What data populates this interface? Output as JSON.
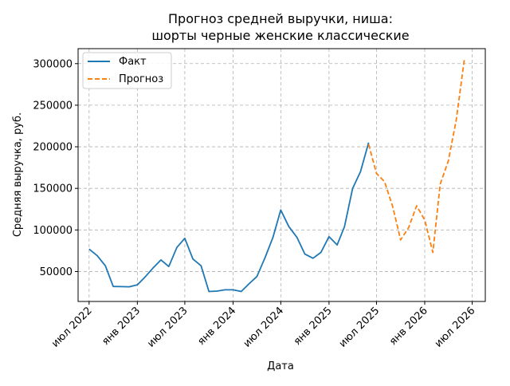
{
  "chart_data": {
    "type": "line",
    "title_lines": [
      "Прогноз средней выручки, ниша:",
      "шорты черные женские классические"
    ],
    "xlabel": "Дата",
    "ylabel": "Средняя выручка, руб.",
    "xlim": [
      "2022-05-20",
      "2026-08-20"
    ],
    "ylim": [
      14000,
      318000
    ],
    "y_ticks": [
      50000,
      100000,
      150000,
      200000,
      250000,
      300000
    ],
    "x_ticks": [
      {
        "date": "2022-07-01",
        "label": "июл 2022"
      },
      {
        "date": "2023-01-01",
        "label": "янв 2023"
      },
      {
        "date": "2023-07-01",
        "label": "июл 2023"
      },
      {
        "date": "2024-01-01",
        "label": "янв 2024"
      },
      {
        "date": "2024-07-01",
        "label": "июл 2024"
      },
      {
        "date": "2025-01-01",
        "label": "янв 2025"
      },
      {
        "date": "2025-07-01",
        "label": "июл 2025"
      },
      {
        "date": "2026-01-01",
        "label": "янв 2026"
      },
      {
        "date": "2026-07-01",
        "label": "июл 2026"
      }
    ],
    "grid": true,
    "legend_position": "top-left",
    "series": [
      {
        "name": "Факт",
        "color": "#1f77b4",
        "style": "solid",
        "points": [
          {
            "x": "2022-07-01",
            "y": 77000
          },
          {
            "x": "2022-08-01",
            "y": 69000
          },
          {
            "x": "2022-09-01",
            "y": 57000
          },
          {
            "x": "2022-10-01",
            "y": 32000
          },
          {
            "x": "2022-11-01",
            "y": 31800
          },
          {
            "x": "2022-12-01",
            "y": 31600
          },
          {
            "x": "2023-01-01",
            "y": 34000
          },
          {
            "x": "2023-02-01",
            "y": 44000
          },
          {
            "x": "2023-03-01",
            "y": 54000
          },
          {
            "x": "2023-04-01",
            "y": 64000
          },
          {
            "x": "2023-05-01",
            "y": 56000
          },
          {
            "x": "2023-06-01",
            "y": 79000
          },
          {
            "x": "2023-07-01",
            "y": 90000
          },
          {
            "x": "2023-08-01",
            "y": 65000
          },
          {
            "x": "2023-09-01",
            "y": 57000
          },
          {
            "x": "2023-10-01",
            "y": 26000
          },
          {
            "x": "2023-11-01",
            "y": 26500
          },
          {
            "x": "2023-12-01",
            "y": 28000
          },
          {
            "x": "2024-01-01",
            "y": 28000
          },
          {
            "x": "2024-02-01",
            "y": 26000
          },
          {
            "x": "2024-03-01",
            "y": 35000
          },
          {
            "x": "2024-04-01",
            "y": 44000
          },
          {
            "x": "2024-05-01",
            "y": 66000
          },
          {
            "x": "2024-06-01",
            "y": 91000
          },
          {
            "x": "2024-07-01",
            "y": 124000
          },
          {
            "x": "2024-08-01",
            "y": 104000
          },
          {
            "x": "2024-09-01",
            "y": 91000
          },
          {
            "x": "2024-10-01",
            "y": 71000
          },
          {
            "x": "2024-11-01",
            "y": 66000
          },
          {
            "x": "2024-12-01",
            "y": 73000
          },
          {
            "x": "2025-01-01",
            "y": 92000
          },
          {
            "x": "2025-02-01",
            "y": 82000
          },
          {
            "x": "2025-03-01",
            "y": 104000
          },
          {
            "x": "2025-04-01",
            "y": 150000
          },
          {
            "x": "2025-05-01",
            "y": 170000
          },
          {
            "x": "2025-06-01",
            "y": 205000
          }
        ]
      },
      {
        "name": "Прогноз",
        "color": "#ff7f0e",
        "style": "dashed",
        "points": [
          {
            "x": "2025-06-01",
            "y": 203000
          },
          {
            "x": "2025-07-01",
            "y": 168000
          },
          {
            "x": "2025-08-01",
            "y": 158000
          },
          {
            "x": "2025-09-01",
            "y": 128000
          },
          {
            "x": "2025-10-01",
            "y": 88000
          },
          {
            "x": "2025-11-01",
            "y": 103000
          },
          {
            "x": "2025-12-01",
            "y": 129000
          },
          {
            "x": "2026-01-01",
            "y": 112000
          },
          {
            "x": "2026-02-01",
            "y": 73000
          },
          {
            "x": "2026-03-01",
            "y": 155000
          },
          {
            "x": "2026-04-01",
            "y": 183000
          },
          {
            "x": "2026-05-01",
            "y": 232000
          },
          {
            "x": "2026-06-01",
            "y": 305000
          }
        ]
      }
    ]
  }
}
